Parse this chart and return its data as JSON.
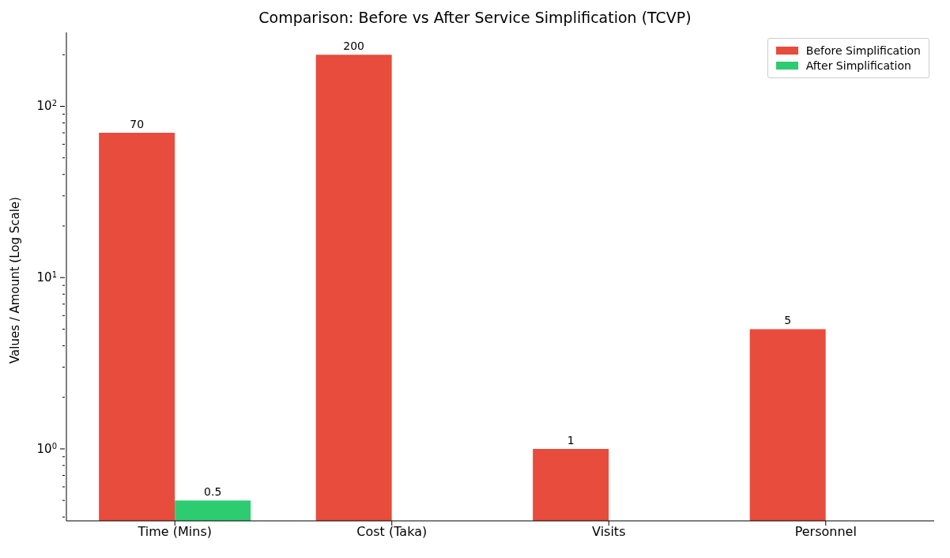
{
  "chart_data": {
    "type": "bar",
    "title": "Comparison: Before vs After Service Simplification (TCVP)",
    "ylabel": "Values / Amount (Log Scale)",
    "categories": [
      "Time (Mins)",
      "Cost (Taka)",
      "Visits",
      "Personnel"
    ],
    "series": [
      {
        "name": "Before Simplification",
        "color": "#e74c3c",
        "values": [
          70,
          200,
          1,
          5
        ]
      },
      {
        "name": "After Simplification",
        "color": "#2ecc71",
        "values": [
          0.5,
          null,
          null,
          null
        ]
      }
    ],
    "log": "y",
    "ylim": [
      0.38,
      270
    ],
    "yticks": [
      {
        "value": 0.4,
        "label": null
      },
      {
        "value": 0.5,
        "label": null
      },
      {
        "value": 0.6,
        "label": null
      },
      {
        "value": 0.7,
        "label": null
      },
      {
        "value": 0.8,
        "label": null
      },
      {
        "value": 0.9,
        "label": null
      },
      {
        "value": 1,
        "label": "10$^{0}$"
      },
      {
        "value": 2,
        "label": null
      },
      {
        "value": 3,
        "label": null
      },
      {
        "value": 4,
        "label": null
      },
      {
        "value": 5,
        "label": null
      },
      {
        "value": 6,
        "label": null
      },
      {
        "value": 7,
        "label": null
      },
      {
        "value": 8,
        "label": null
      },
      {
        "value": 9,
        "label": null
      },
      {
        "value": 10,
        "label": "10$^{1}$"
      },
      {
        "value": 20,
        "label": null
      },
      {
        "value": 30,
        "label": null
      },
      {
        "value": 40,
        "label": null
      },
      {
        "value": 50,
        "label": null
      },
      {
        "value": 60,
        "label": null
      },
      {
        "value": 70,
        "label": null
      },
      {
        "value": 80,
        "label": null
      },
      {
        "value": 90,
        "label": null
      },
      {
        "value": 100,
        "label": "10$^{2}$"
      },
      {
        "value": 200,
        "label": null
      }
    ],
    "data_labels": true,
    "legend": "top right"
  }
}
